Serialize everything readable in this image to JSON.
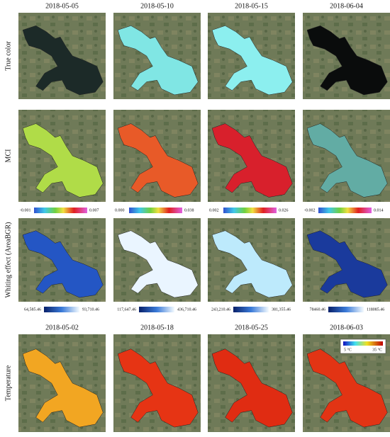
{
  "columns_top": [
    "2018-05-05",
    "2018-05-10",
    "2018-05-15",
    "2018-06-04"
  ],
  "columns_bottom": [
    "2018-05-02",
    "2018-05-18",
    "2018-05-25",
    "2018-06-03"
  ],
  "rows": [
    "True color",
    "MCI",
    "Whiting effect (AreaBGR)",
    "Temperature"
  ],
  "mci_colorbars": [
    {
      "min": "-0.001",
      "max": "0.007"
    },
    {
      "min": "0.000",
      "max": "0.038"
    },
    {
      "min": "0.002",
      "max": "0.026"
    },
    {
      "min": "-0.002",
      "max": "0.014"
    }
  ],
  "whiting_colorbars": [
    {
      "min": "64,585.46",
      "max": "93,710.46"
    },
    {
      "min": "117,647.46",
      "max": "436,710.46"
    },
    {
      "min": "243,210.46",
      "max": "381,355.46"
    },
    {
      "min": "78460.46",
      "max": "118085.46"
    }
  ],
  "temperature_legend": {
    "min": "5 °C",
    "max": "35 °C"
  }
}
